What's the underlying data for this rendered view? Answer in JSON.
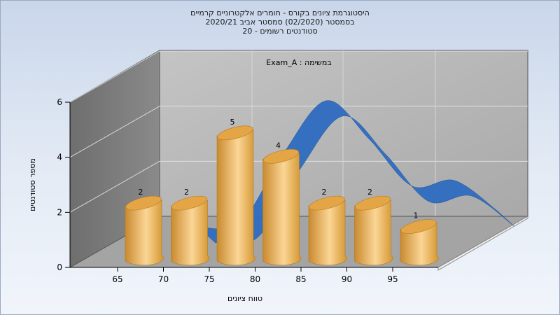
{
  "title_lines": [
    "היסטוגרמת ציונים בקורס - חומרים אלקטרוניים קרמיים",
    "בסמסטר  (02/2020)  סמסטר אביב 2020/21",
    "סטודנטים רשומים - 20"
  ],
  "chart_data": {
    "type": "bar",
    "title": "היסטוגרמת ציונים בקורס - חומרים אלקטרוניים קרמיים",
    "xlabel": "טווח ציונים",
    "ylabel": "מספר סטודנטים",
    "annotation": "Exam_A : במשימה",
    "categories": [
      "65",
      "70",
      "75",
      "80",
      "85",
      "90",
      "95"
    ],
    "values": [
      2,
      2,
      5,
      4,
      2,
      2,
      1
    ],
    "y_ticks": [
      "0",
      "2",
      "4",
      "6"
    ],
    "ylim": [
      0,
      6
    ],
    "grid": true,
    "curve": {
      "description_values": [
        0.9,
        1.1,
        3.6,
        5.5,
        4.1,
        2.4,
        2.6,
        1.5
      ]
    }
  },
  "colors": {
    "bar_side": "#d9a04a",
    "bar_light": "#f6cf8a",
    "bar_top": "#e3a545",
    "curve": "#2f6cc0",
    "back_wall": "#b5b5b5",
    "left_wall": "#7a7a7a",
    "floor": "#a8a8a8"
  }
}
